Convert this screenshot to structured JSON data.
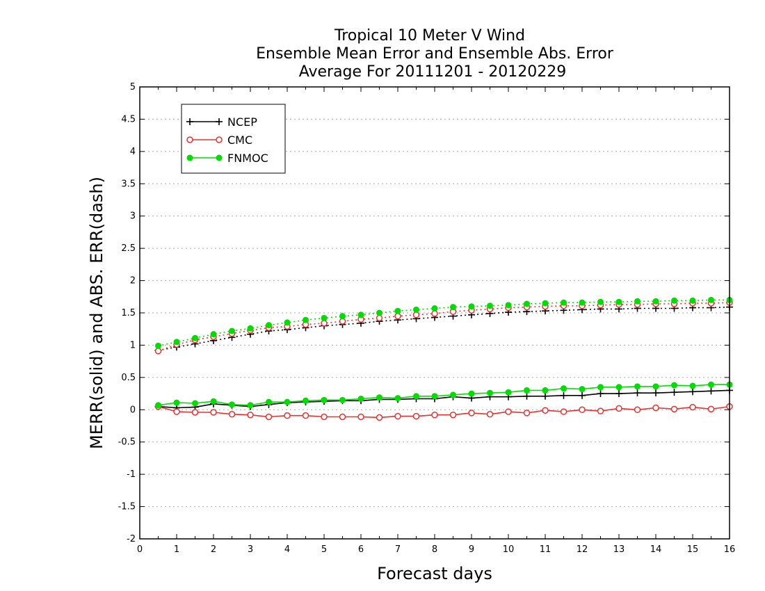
{
  "chart_data": {
    "type": "line",
    "title_lines": [
      "Tropical 10 Meter V Wind",
      "Ensemble Mean Error and Ensemble Abs. Error",
      "Average For 20111201 - 20120229"
    ],
    "xlabel": "Forecast days",
    "ylabel": "MERR(solid) and ABS. ERR(dash)",
    "xlim": [
      0,
      16
    ],
    "ylim": [
      -2,
      5
    ],
    "x_ticks": [
      0,
      1,
      2,
      3,
      4,
      5,
      6,
      7,
      8,
      9,
      10,
      11,
      12,
      13,
      14,
      15,
      16
    ],
    "x_tick_labels": [
      "0",
      "1",
      "2",
      "3",
      "4",
      "5",
      "6",
      "7",
      "8",
      "9",
      "10",
      "11",
      "12",
      "13",
      "14",
      "15",
      "16"
    ],
    "y_ticks": [
      -2,
      -1.5,
      -1,
      -0.5,
      0,
      0.5,
      1,
      1.5,
      2,
      2.5,
      3,
      3.5,
      4,
      4.5,
      5
    ],
    "y_tick_labels": [
      "-2",
      "-1.5",
      "-1",
      "-0.5",
      "0",
      "0.5",
      "1",
      "1.5",
      "2",
      "2.5",
      "3",
      "3.5",
      "4",
      "4.5",
      "5"
    ],
    "grid": "horizontal dotted",
    "legend_position": "top-left",
    "x": [
      0.5,
      1,
      1.5,
      2,
      2.5,
      3,
      3.5,
      4,
      4.5,
      5,
      5.5,
      6,
      6.5,
      7,
      7.5,
      8,
      8.5,
      9,
      9.5,
      10,
      10.5,
      11,
      11.5,
      12,
      12.5,
      13,
      13.5,
      14,
      14.5,
      15,
      15.5,
      16
    ],
    "series": [
      {
        "name": "NCEP",
        "marker": "plus",
        "color": "#000000",
        "merr": [
          0.05,
          0.03,
          0.04,
          0.09,
          0.07,
          0.05,
          0.08,
          0.11,
          0.12,
          0.13,
          0.14,
          0.14,
          0.16,
          0.16,
          0.17,
          0.17,
          0.2,
          0.18,
          0.2,
          0.2,
          0.21,
          0.21,
          0.22,
          0.22,
          0.25,
          0.25,
          0.26,
          0.26,
          0.27,
          0.28,
          0.29,
          0.3
        ],
        "abs_err": [
          0.92,
          0.97,
          1.02,
          1.07,
          1.12,
          1.17,
          1.22,
          1.24,
          1.27,
          1.3,
          1.32,
          1.34,
          1.37,
          1.39,
          1.41,
          1.43,
          1.45,
          1.47,
          1.49,
          1.51,
          1.52,
          1.53,
          1.54,
          1.55,
          1.56,
          1.56,
          1.57,
          1.57,
          1.57,
          1.58,
          1.58,
          1.59
        ]
      },
      {
        "name": "CMC",
        "marker": "open-circle",
        "color": "#e83030",
        "merr": [
          0.05,
          -0.03,
          -0.04,
          -0.04,
          -0.07,
          -0.08,
          -0.11,
          -0.09,
          -0.09,
          -0.11,
          -0.11,
          -0.11,
          -0.12,
          -0.1,
          -0.1,
          -0.08,
          -0.08,
          -0.05,
          -0.07,
          -0.03,
          -0.05,
          -0.01,
          -0.03,
          0.0,
          -0.02,
          0.02,
          0.0,
          0.03,
          0.01,
          0.04,
          0.01,
          0.05
        ],
        "abs_err": [
          0.91,
          1.01,
          1.08,
          1.13,
          1.18,
          1.23,
          1.27,
          1.29,
          1.32,
          1.34,
          1.37,
          1.4,
          1.42,
          1.45,
          1.47,
          1.49,
          1.52,
          1.54,
          1.56,
          1.58,
          1.59,
          1.6,
          1.61,
          1.61,
          1.62,
          1.63,
          1.63,
          1.64,
          1.64,
          1.65,
          1.65,
          1.66
        ]
      },
      {
        "name": "FNMOC",
        "marker": "filled-circle",
        "color": "#00dd00",
        "merr": [
          0.07,
          0.11,
          0.1,
          0.13,
          0.08,
          0.07,
          0.12,
          0.12,
          0.14,
          0.15,
          0.15,
          0.17,
          0.19,
          0.18,
          0.21,
          0.21,
          0.23,
          0.25,
          0.26,
          0.27,
          0.3,
          0.3,
          0.33,
          0.32,
          0.35,
          0.35,
          0.36,
          0.36,
          0.38,
          0.37,
          0.39,
          0.39
        ],
        "abs_err": [
          0.99,
          1.05,
          1.11,
          1.17,
          1.22,
          1.26,
          1.31,
          1.35,
          1.39,
          1.42,
          1.45,
          1.47,
          1.5,
          1.53,
          1.55,
          1.57,
          1.59,
          1.6,
          1.61,
          1.62,
          1.64,
          1.65,
          1.66,
          1.66,
          1.67,
          1.67,
          1.68,
          1.68,
          1.69,
          1.69,
          1.7,
          1.7
        ]
      }
    ]
  }
}
